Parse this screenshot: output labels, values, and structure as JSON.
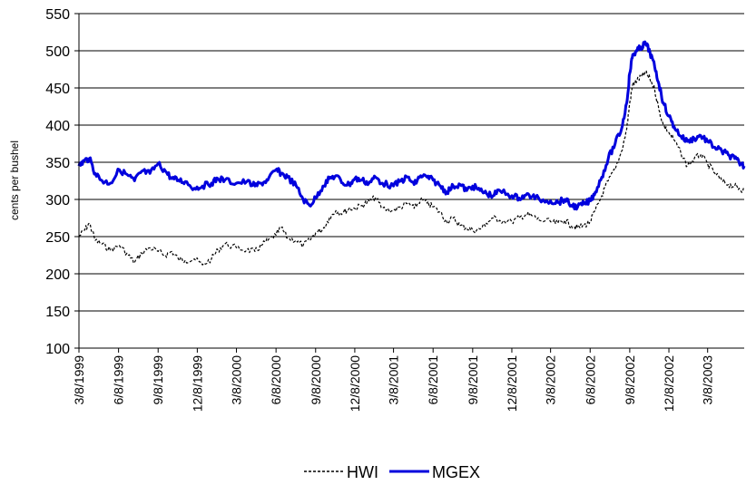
{
  "chart_data": {
    "type": "line",
    "title": "",
    "xlabel": "",
    "ylabel": "cents per bushel",
    "ylim": [
      100,
      550
    ],
    "yticks": [
      "100",
      "150",
      "200",
      "250",
      "300",
      "350",
      "400",
      "450",
      "500",
      "550"
    ],
    "xticks": [
      "3/8/1999",
      "6/8/1999",
      "9/8/1999",
      "12/8/1999",
      "3/8/2000",
      "6/8/2000",
      "9/8/2000",
      "12/8/2000",
      "3/8/2001",
      "6/8/2001",
      "9/8/2001",
      "12/8/2001",
      "3/8/2002",
      "6/8/2002",
      "9/8/2002",
      "12/8/2002",
      "3/8/2003"
    ],
    "x_range": [
      "1999-03-08",
      "2003-06-01"
    ],
    "grid": "horizontal",
    "legend": "bottom",
    "series": [
      {
        "name": "HWI",
        "color": "#000000",
        "style": "dashed",
        "points": [
          [
            "1999-03-08",
            250
          ],
          [
            "1999-03-20",
            258
          ],
          [
            "1999-04-01",
            268
          ],
          [
            "1999-04-15",
            245
          ],
          [
            "1999-05-01",
            240
          ],
          [
            "1999-05-20",
            232
          ],
          [
            "1999-06-10",
            238
          ],
          [
            "1999-07-01",
            225
          ],
          [
            "1999-07-15",
            215
          ],
          [
            "1999-08-01",
            228
          ],
          [
            "1999-08-20",
            235
          ],
          [
            "1999-09-08",
            230
          ],
          [
            "1999-09-25",
            225
          ],
          [
            "1999-10-10",
            230
          ],
          [
            "1999-10-25",
            220
          ],
          [
            "1999-11-10",
            218
          ],
          [
            "1999-12-01",
            220
          ],
          [
            "1999-12-20",
            212
          ],
          [
            "2000-01-10",
            220
          ],
          [
            "2000-01-25",
            232
          ],
          [
            "2000-02-10",
            240
          ],
          [
            "2000-03-08",
            235
          ],
          [
            "2000-04-01",
            232
          ],
          [
            "2000-04-20",
            230
          ],
          [
            "2000-05-05",
            238
          ],
          [
            "2000-05-20",
            245
          ],
          [
            "2000-06-08",
            252
          ],
          [
            "2000-06-20",
            262
          ],
          [
            "2000-07-05",
            248
          ],
          [
            "2000-07-25",
            245
          ],
          [
            "2000-08-10",
            238
          ],
          [
            "2000-08-25",
            245
          ],
          [
            "2000-09-08",
            255
          ],
          [
            "2000-09-25",
            260
          ],
          [
            "2000-10-10",
            275
          ],
          [
            "2000-10-25",
            285
          ],
          [
            "2000-11-10",
            282
          ],
          [
            "2000-11-25",
            288
          ],
          [
            "2000-12-08",
            288
          ],
          [
            "2000-12-25",
            292
          ],
          [
            "2001-01-10",
            298
          ],
          [
            "2001-01-25",
            302
          ],
          [
            "2001-02-10",
            288
          ],
          [
            "2001-03-08",
            285
          ],
          [
            "2001-03-25",
            290
          ],
          [
            "2001-04-10",
            295
          ],
          [
            "2001-04-25",
            288
          ],
          [
            "2001-05-10",
            300
          ],
          [
            "2001-05-25",
            295
          ],
          [
            "2001-06-08",
            290
          ],
          [
            "2001-06-25",
            282
          ],
          [
            "2001-07-10",
            270
          ],
          [
            "2001-07-25",
            275
          ],
          [
            "2001-08-10",
            265
          ],
          [
            "2001-08-25",
            262
          ],
          [
            "2001-09-08",
            258
          ],
          [
            "2001-09-25",
            260
          ],
          [
            "2001-10-10",
            268
          ],
          [
            "2001-10-25",
            275
          ],
          [
            "2001-11-10",
            272
          ],
          [
            "2001-12-08",
            270
          ],
          [
            "2001-12-25",
            275
          ],
          [
            "2002-01-10",
            280
          ],
          [
            "2002-01-25",
            278
          ],
          [
            "2002-02-10",
            272
          ],
          [
            "2002-03-08",
            270
          ],
          [
            "2002-03-25",
            268
          ],
          [
            "2002-04-10",
            272
          ],
          [
            "2002-04-25",
            265
          ],
          [
            "2002-05-10",
            262
          ],
          [
            "2002-05-25",
            265
          ],
          [
            "2002-06-08",
            270
          ],
          [
            "2002-06-20",
            285
          ],
          [
            "2002-07-05",
            305
          ],
          [
            "2002-07-20",
            325
          ],
          [
            "2002-08-05",
            340
          ],
          [
            "2002-08-20",
            365
          ],
          [
            "2002-09-01",
            395
          ],
          [
            "2002-09-08",
            430
          ],
          [
            "2002-09-15",
            455
          ],
          [
            "2002-09-25",
            460
          ],
          [
            "2002-10-05",
            465
          ],
          [
            "2002-10-15",
            470
          ],
          [
            "2002-10-25",
            462
          ],
          [
            "2002-11-05",
            448
          ],
          [
            "2002-11-15",
            420
          ],
          [
            "2002-11-25",
            400
          ],
          [
            "2002-12-08",
            390
          ],
          [
            "2002-12-20",
            380
          ],
          [
            "2003-01-05",
            362
          ],
          [
            "2003-01-20",
            345
          ],
          [
            "2003-02-05",
            355
          ],
          [
            "2003-02-20",
            360
          ],
          [
            "2003-03-08",
            348
          ],
          [
            "2003-03-25",
            335
          ],
          [
            "2003-04-10",
            325
          ],
          [
            "2003-04-25",
            320
          ],
          [
            "2003-05-10",
            318
          ],
          [
            "2003-05-20",
            315
          ],
          [
            "2003-06-01",
            312
          ]
        ]
      },
      {
        "name": "MGEX",
        "color": "#0000dd",
        "style": "solid",
        "points": [
          [
            "1999-03-08",
            345
          ],
          [
            "1999-03-20",
            352
          ],
          [
            "1999-04-01",
            355
          ],
          [
            "1999-04-15",
            335
          ],
          [
            "1999-05-01",
            325
          ],
          [
            "1999-05-20",
            322
          ],
          [
            "1999-06-10",
            340
          ],
          [
            "1999-07-01",
            332
          ],
          [
            "1999-07-15",
            325
          ],
          [
            "1999-08-01",
            338
          ],
          [
            "1999-08-20",
            335
          ],
          [
            "1999-09-08",
            348
          ],
          [
            "1999-09-25",
            338
          ],
          [
            "1999-10-10",
            328
          ],
          [
            "1999-10-25",
            326
          ],
          [
            "1999-11-10",
            324
          ],
          [
            "1999-12-01",
            315
          ],
          [
            "1999-12-20",
            318
          ],
          [
            "2000-01-10",
            322
          ],
          [
            "2000-01-25",
            328
          ],
          [
            "2000-02-10",
            326
          ],
          [
            "2000-03-08",
            322
          ],
          [
            "2000-04-01",
            324
          ],
          [
            "2000-04-20",
            318
          ],
          [
            "2000-05-05",
            322
          ],
          [
            "2000-05-20",
            326
          ],
          [
            "2000-06-08",
            340
          ],
          [
            "2000-06-20",
            335
          ],
          [
            "2000-07-05",
            330
          ],
          [
            "2000-07-25",
            318
          ],
          [
            "2000-08-10",
            300
          ],
          [
            "2000-08-25",
            292
          ],
          [
            "2000-09-08",
            302
          ],
          [
            "2000-09-25",
            318
          ],
          [
            "2000-10-10",
            328
          ],
          [
            "2000-10-25",
            332
          ],
          [
            "2000-11-10",
            322
          ],
          [
            "2000-11-25",
            320
          ],
          [
            "2000-12-08",
            328
          ],
          [
            "2000-12-25",
            326
          ],
          [
            "2001-01-10",
            322
          ],
          [
            "2001-01-25",
            330
          ],
          [
            "2001-02-10",
            322
          ],
          [
            "2001-03-08",
            318
          ],
          [
            "2001-03-25",
            325
          ],
          [
            "2001-04-10",
            330
          ],
          [
            "2001-04-25",
            320
          ],
          [
            "2001-05-10",
            332
          ],
          [
            "2001-05-25",
            330
          ],
          [
            "2001-06-08",
            326
          ],
          [
            "2001-06-25",
            318
          ],
          [
            "2001-07-10",
            310
          ],
          [
            "2001-07-25",
            318
          ],
          [
            "2001-08-10",
            320
          ],
          [
            "2001-08-25",
            312
          ],
          [
            "2001-09-08",
            318
          ],
          [
            "2001-09-25",
            312
          ],
          [
            "2001-10-10",
            308
          ],
          [
            "2001-10-25",
            305
          ],
          [
            "2001-11-10",
            312
          ],
          [
            "2001-12-08",
            305
          ],
          [
            "2001-12-25",
            302
          ],
          [
            "2002-01-10",
            306
          ],
          [
            "2002-01-25",
            304
          ],
          [
            "2002-02-10",
            300
          ],
          [
            "2002-03-08",
            298
          ],
          [
            "2002-03-25",
            296
          ],
          [
            "2002-04-10",
            300
          ],
          [
            "2002-04-25",
            292
          ],
          [
            "2002-05-10",
            290
          ],
          [
            "2002-05-25",
            294
          ],
          [
            "2002-06-08",
            298
          ],
          [
            "2002-06-20",
            310
          ],
          [
            "2002-07-05",
            330
          ],
          [
            "2002-07-20",
            355
          ],
          [
            "2002-08-05",
            375
          ],
          [
            "2002-08-20",
            395
          ],
          [
            "2002-09-01",
            430
          ],
          [
            "2002-09-08",
            470
          ],
          [
            "2002-09-15",
            495
          ],
          [
            "2002-09-25",
            500
          ],
          [
            "2002-10-05",
            505
          ],
          [
            "2002-10-15",
            510
          ],
          [
            "2002-10-25",
            498
          ],
          [
            "2002-11-05",
            478
          ],
          [
            "2002-11-15",
            455
          ],
          [
            "2002-11-25",
            430
          ],
          [
            "2002-12-08",
            412
          ],
          [
            "2002-12-20",
            398
          ],
          [
            "2003-01-05",
            385
          ],
          [
            "2003-01-20",
            378
          ],
          [
            "2003-02-05",
            382
          ],
          [
            "2003-02-20",
            386
          ],
          [
            "2003-03-08",
            378
          ],
          [
            "2003-03-25",
            370
          ],
          [
            "2003-04-10",
            365
          ],
          [
            "2003-04-25",
            360
          ],
          [
            "2003-05-10",
            355
          ],
          [
            "2003-05-20",
            350
          ],
          [
            "2003-06-01",
            345
          ]
        ]
      }
    ]
  }
}
